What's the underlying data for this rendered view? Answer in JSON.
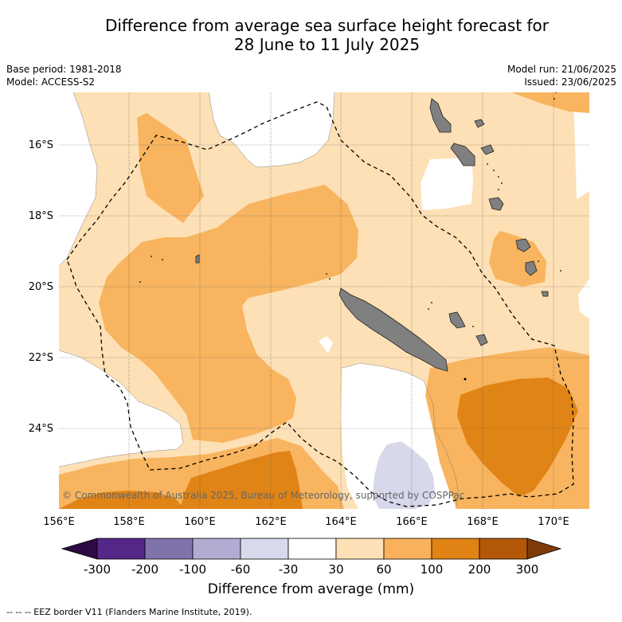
{
  "header": {
    "title_line1": "Difference from average sea surface height forecast for",
    "title_line2": "28 June to 11 July 2025",
    "base_period": "Base period: 1981-2018",
    "model": "Model: ACCESS-S2",
    "model_run": "Model run: 21/06/2025",
    "issued": "Issued: 23/06/2025"
  },
  "map": {
    "credit": "© Commonwealth of Australia 2025, Bureau of Meteorology, supported by COSPPac",
    "lon_labels": [
      "156°E",
      "158°E",
      "160°E",
      "162°E",
      "164°E",
      "166°E",
      "168°E",
      "170°E"
    ],
    "lat_labels": [
      "16°S",
      "18°S",
      "20°S",
      "22°S",
      "24°S"
    ],
    "land_color": "#808080",
    "contour_colors": {
      "c30_60": "#fde0b5",
      "c60_100": "#f8b45e",
      "c100_200": "#e08416",
      "cneg30_neg60": "#d8d8eb"
    }
  },
  "colorbar": {
    "tick_labels": [
      "-300",
      "-200",
      "-100",
      "-60",
      "-30",
      "30",
      "60",
      "100",
      "200",
      "300"
    ],
    "colors": [
      "#2d0a45",
      "#542788",
      "#8073ac",
      "#b2abd2",
      "#d8daeb",
      "#ffffff",
      "#fee0b6",
      "#f9b25b",
      "#e08214",
      "#b35806",
      "#7f3b08"
    ],
    "label": "Difference from average (mm)"
  },
  "footer": {
    "legend_text": "-- -- -- EEZ border V11 (Flanders Marine Institute, 2019)."
  }
}
